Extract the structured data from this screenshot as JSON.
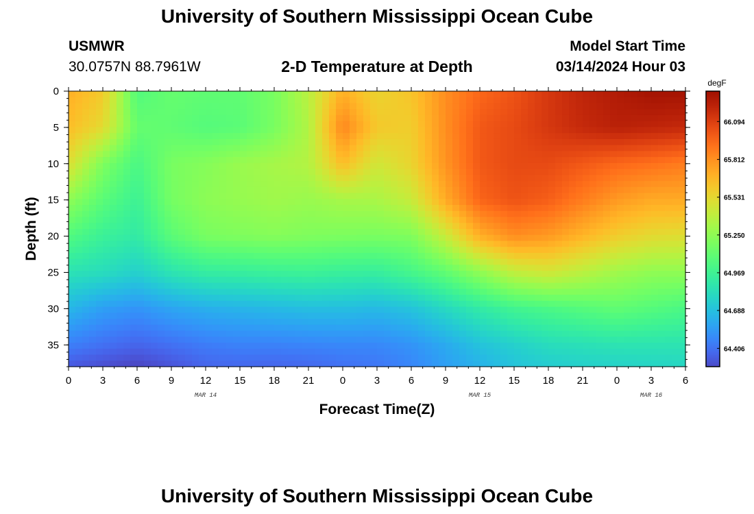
{
  "header": {
    "title": "University of Southern Mississippi Ocean Cube",
    "station": "USMWR",
    "coords": "30.0757N  88.7961W",
    "subtitle": "2-D Temperature at Depth",
    "model_start_label": "Model Start Time",
    "model_start_value": "03/14/2024 Hour 03"
  },
  "footer": {
    "title": "University of Southern Mississippi Ocean Cube"
  },
  "chart_data": {
    "type": "heatmap",
    "title": "2-D Temperature at Depth",
    "xlabel": "Forecast Time(Z)",
    "ylabel": "Depth (ft)",
    "x_tick_labels": [
      "0",
      "3",
      "6",
      "9",
      "12",
      "15",
      "18",
      "21",
      "0",
      "3",
      "6",
      "9",
      "12",
      "15",
      "18",
      "21",
      "0",
      "3",
      "6"
    ],
    "x_hours": [
      0,
      3,
      6,
      9,
      12,
      15,
      18,
      21,
      24,
      27,
      30,
      33,
      36,
      39,
      42,
      45,
      48,
      51,
      54
    ],
    "xlim": [
      0,
      54
    ],
    "date_labels": [
      {
        "label": "MAR 14",
        "hour": 12
      },
      {
        "label": "MAR 15",
        "hour": 36
      },
      {
        "label": "MAR 16",
        "hour": 51
      }
    ],
    "y_ticks": [
      0,
      5,
      10,
      15,
      20,
      25,
      30,
      35
    ],
    "ylim": [
      0,
      38
    ],
    "colorbar": {
      "unit": "degF",
      "min": 64.27,
      "max": 66.32,
      "tick_values": [
        64.406,
        64.688,
        64.969,
        65.25,
        65.531,
        65.812,
        66.094
      ],
      "tick_labels": [
        "64.406",
        "64.688",
        "64.969",
        "65.250",
        "65.531",
        "65.812",
        "66.094"
      ]
    },
    "grid": false,
    "colormap": "turbo",
    "note": "temperature field (degF) sampled at given forecast hours and depths",
    "hours": [
      0,
      3,
      6,
      9,
      12,
      15,
      18,
      21,
      24,
      27,
      30,
      33,
      36,
      39,
      42,
      45,
      48,
      51,
      54
    ],
    "depths": [
      0,
      5,
      10,
      15,
      20,
      25,
      30,
      35,
      38
    ],
    "temperature": [
      [
        65.7,
        65.6,
        65.05,
        65.12,
        65.1,
        65.1,
        65.18,
        65.38,
        65.7,
        65.55,
        65.62,
        65.82,
        65.95,
        66.02,
        66.12,
        66.2,
        66.25,
        66.3,
        66.3
      ],
      [
        65.65,
        65.52,
        65.12,
        65.1,
        65.06,
        65.08,
        65.18,
        65.35,
        65.85,
        65.6,
        65.58,
        65.82,
        66.0,
        66.05,
        66.12,
        66.18,
        66.22,
        66.2,
        66.18
      ],
      [
        65.5,
        65.2,
        65.02,
        65.18,
        65.22,
        65.28,
        65.32,
        65.36,
        65.65,
        65.45,
        65.55,
        65.8,
        66.0,
        66.05,
        66.05,
        66.0,
        65.95,
        65.92,
        65.88
      ],
      [
        65.25,
        65.08,
        64.96,
        65.17,
        65.24,
        65.27,
        65.3,
        65.28,
        65.32,
        65.33,
        65.42,
        65.72,
        65.96,
        66.02,
        65.98,
        65.88,
        65.78,
        65.72,
        65.72
      ],
      [
        65.05,
        64.95,
        64.9,
        65.08,
        65.18,
        65.2,
        65.22,
        65.2,
        65.19,
        65.18,
        65.2,
        65.42,
        65.7,
        65.82,
        65.78,
        65.68,
        65.58,
        65.52,
        65.5
      ],
      [
        64.85,
        64.82,
        64.76,
        64.86,
        64.92,
        64.93,
        64.95,
        64.96,
        64.94,
        64.93,
        65.0,
        65.1,
        65.25,
        65.4,
        65.45,
        65.38,
        65.3,
        65.25,
        65.25
      ],
      [
        64.65,
        64.56,
        64.52,
        64.58,
        64.62,
        64.64,
        64.66,
        64.68,
        64.68,
        64.66,
        64.7,
        64.8,
        64.9,
        64.98,
        65.02,
        65.06,
        65.1,
        65.06,
        65.02
      ],
      [
        64.45,
        64.4,
        64.36,
        64.4,
        64.44,
        64.46,
        64.46,
        64.47,
        64.48,
        64.48,
        64.52,
        64.6,
        64.7,
        64.76,
        64.82,
        64.84,
        64.86,
        64.86,
        64.86
      ],
      [
        64.32,
        64.28,
        64.25,
        64.3,
        64.36,
        64.37,
        64.36,
        64.37,
        64.4,
        64.42,
        64.47,
        64.56,
        64.63,
        64.7,
        64.74,
        64.76,
        64.77,
        64.78,
        64.79
      ]
    ]
  }
}
